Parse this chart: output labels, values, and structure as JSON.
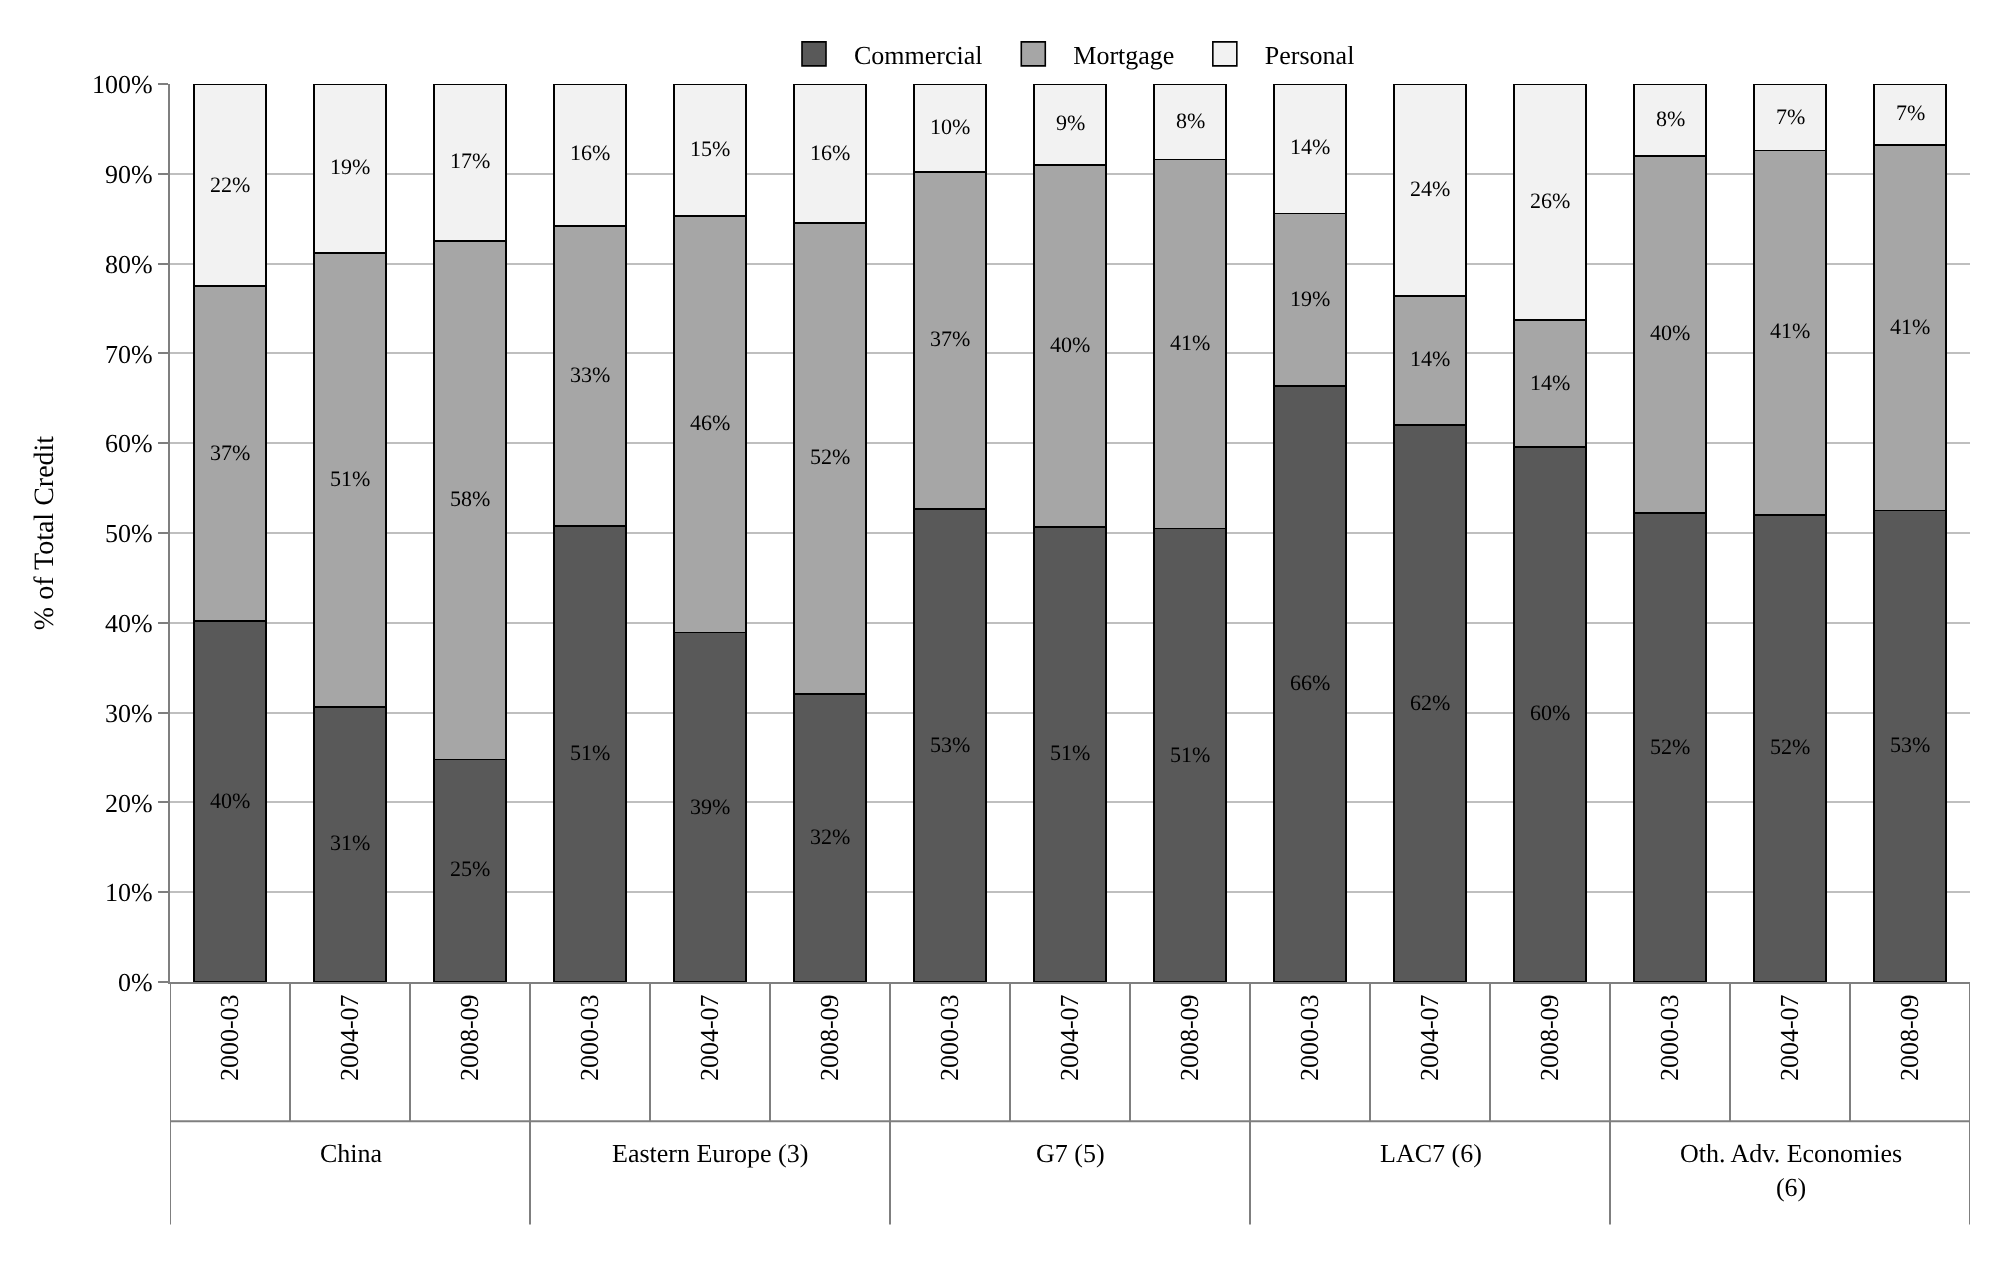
{
  "chart_data": {
    "type": "bar",
    "stacked": true,
    "ylabel": "% of Total Credit",
    "categories": [
      "2000-03",
      "2004-07",
      "2008-09",
      "2000-03",
      "2004-07",
      "2008-09",
      "2000-03",
      "2004-07",
      "2008-09",
      "2000-03",
      "2004-07",
      "2008-09",
      "2000-03",
      "2004-07",
      "2008-09"
    ],
    "annotations": [
      "China",
      "Eastern Europe (3)",
      "G7 (5)",
      "LAC7 (6)",
      "Oth. Adv. Economies (6)"
    ],
    "series": [
      {
        "name": "Commercial",
        "color": "#595959",
        "values": [
          40.2,
          30.6,
          24.8,
          50.8,
          38.9,
          32.1,
          52.7,
          50.7,
          50.5,
          66.4,
          62.0,
          59.6,
          52.2,
          52.0,
          52.5
        ],
        "value_labels": [
          "40%",
          "31%",
          "25%",
          "51%",
          "39%",
          "32%",
          "53%",
          "51%",
          "51%",
          "66%",
          "62%",
          "60%",
          "52%",
          "52%",
          "53%"
        ]
      },
      {
        "name": "Mortgage",
        "color": "#a6a6a6",
        "values": [
          37.3,
          50.6,
          57.7,
          33.4,
          46.4,
          52.4,
          37.5,
          40.3,
          41.1,
          19.2,
          14.4,
          14.1,
          39.8,
          40.6,
          40.7
        ],
        "value_labels": [
          "37%",
          "51%",
          "58%",
          "33%",
          "46%",
          "52%",
          "37%",
          "40%",
          "41%",
          "19%",
          "14%",
          "14%",
          "40%",
          "41%",
          "41%"
        ]
      },
      {
        "name": "Personal",
        "color": "#f2f2f2",
        "values": [
          22.5,
          18.8,
          17.5,
          15.8,
          14.7,
          15.5,
          9.8,
          9.0,
          8.4,
          14.4,
          23.6,
          26.3,
          8.0,
          7.4,
          6.8
        ],
        "value_labels": [
          "22%",
          "19%",
          "17%",
          "16%",
          "15%",
          "16%",
          "10%",
          "9%",
          "8%",
          "14%",
          "24%",
          "26%",
          "8%",
          "7%",
          "7%"
        ]
      }
    ],
    "ylim": [
      0,
      100
    ],
    "yticks": [
      {
        "value": 0,
        "label": "0%"
      },
      {
        "value": 10,
        "label": "10%"
      },
      {
        "value": 20,
        "label": "20%"
      },
      {
        "value": 30,
        "label": "30%"
      },
      {
        "value": 40,
        "label": "40%"
      },
      {
        "value": 50,
        "label": "50%"
      },
      {
        "value": 60,
        "label": "60%"
      },
      {
        "value": 70,
        "label": "70%"
      },
      {
        "value": 80,
        "label": "80%"
      },
      {
        "value": 90,
        "label": "90%"
      },
      {
        "value": 100,
        "label": "100%"
      }
    ],
    "grid": "y",
    "legend": "top"
  }
}
